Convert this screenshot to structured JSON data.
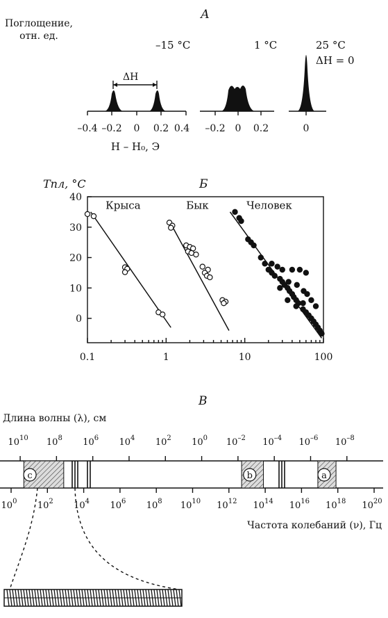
{
  "panel_a": {
    "label": "А",
    "ylabel_line1": "Поглощение,",
    "ylabel_line2": "отн. ед.",
    "spectra": [
      {
        "temp": "–15 °С",
        "ticks": [
          "–0.4",
          "–0.2",
          "0",
          "0.2",
          "0.4"
        ],
        "delta_h": "ΔH"
      },
      {
        "temp": "1 °С",
        "ticks": [
          "–0.2",
          "0",
          "0.2"
        ]
      },
      {
        "temp": "25 °С",
        "note": "ΔH = 0",
        "ticks": [
          "0"
        ]
      }
    ],
    "xlabel": "H – H₀, Э"
  },
  "panel_b": {
    "label": "Б",
    "ylabel": "Tпл, °С",
    "yticks": [
      "0",
      "10",
      "20",
      "30",
      "40"
    ],
    "xticks": [
      "0.1",
      "1",
      "10",
      "100"
    ]
  },
  "chart_data": {
    "type": "scatter",
    "x_scale": "log",
    "xlim": [
      0.1,
      100
    ],
    "ylim": [
      -8,
      40
    ],
    "ylabel": "Tпл, °С",
    "series": [
      {
        "name": "Крыса",
        "marker": "open",
        "fit": [
          [
            0.11,
            35
          ],
          [
            1.15,
            -3
          ]
        ],
        "points": [
          [
            0.1,
            34.3
          ],
          [
            0.12,
            33.6
          ],
          [
            0.3,
            16.8
          ],
          [
            0.32,
            16.3
          ],
          [
            0.3,
            15.2
          ],
          [
            0.8,
            2
          ],
          [
            0.9,
            1.3
          ]
        ]
      },
      {
        "name": "Бык",
        "marker": "open",
        "fit": [
          [
            1.1,
            32
          ],
          [
            6.3,
            -4
          ]
        ],
        "points": [
          [
            1.1,
            31.5
          ],
          [
            1.2,
            30.5
          ],
          [
            1.15,
            29.8
          ],
          [
            1.8,
            24
          ],
          [
            2.0,
            23.5
          ],
          [
            2.2,
            23
          ],
          [
            1.9,
            22
          ],
          [
            2.1,
            21.5
          ],
          [
            2.4,
            21
          ],
          [
            2.9,
            17
          ],
          [
            3.4,
            16
          ],
          [
            3.1,
            15
          ],
          [
            3.3,
            14
          ],
          [
            3.6,
            13.5
          ],
          [
            5.2,
            6
          ],
          [
            5.7,
            5.5
          ],
          [
            5.4,
            5
          ]
        ]
      },
      {
        "name": "Человек",
        "marker": "filled",
        "fit": [
          [
            6.5,
            35
          ],
          [
            95,
            -6.5
          ]
        ],
        "points": [
          [
            7.5,
            35
          ],
          [
            8.5,
            33
          ],
          [
            9,
            32
          ],
          [
            11,
            26
          ],
          [
            12,
            25
          ],
          [
            13,
            24
          ],
          [
            16,
            20
          ],
          [
            18,
            18
          ],
          [
            20,
            16
          ],
          [
            22,
            15
          ],
          [
            24,
            14
          ],
          [
            26,
            17
          ],
          [
            28,
            13
          ],
          [
            30,
            12
          ],
          [
            32,
            11
          ],
          [
            35,
            10
          ],
          [
            37,
            9
          ],
          [
            40,
            8
          ],
          [
            42,
            7
          ],
          [
            45,
            6
          ],
          [
            48,
            5
          ],
          [
            55,
            3
          ],
          [
            60,
            2
          ],
          [
            65,
            1
          ],
          [
            70,
            0
          ],
          [
            75,
            -1
          ],
          [
            80,
            -2
          ],
          [
            85,
            -3
          ],
          [
            90,
            -4
          ],
          [
            95,
            -5
          ],
          [
            22,
            18
          ],
          [
            30,
            16
          ],
          [
            40,
            16
          ],
          [
            50,
            16
          ],
          [
            60,
            15
          ],
          [
            28,
            10
          ],
          [
            36,
            12
          ],
          [
            46,
            11
          ],
          [
            56,
            9
          ],
          [
            62,
            8
          ],
          [
            35,
            6
          ],
          [
            45,
            4
          ],
          [
            55,
            5
          ],
          [
            70,
            6
          ],
          [
            80,
            4
          ]
        ]
      }
    ]
  },
  "panel_c": {
    "label": "В",
    "wavelength_label": "Длина волны (λ), см",
    "wl_exponents": [
      "10",
      "8",
      "6",
      "4",
      "2",
      "0",
      "–2",
      "–4",
      "–6",
      "–8"
    ],
    "freq_exponents": [
      "0",
      "2",
      "4",
      "6",
      "8",
      "10",
      "12",
      "14",
      "16",
      "18",
      "20"
    ],
    "tick_base": "10",
    "frequency_label": "Частота колебаний (ν), Гц",
    "bands": [
      {
        "letter": "c",
        "from": 0.7,
        "to": 2.9
      },
      {
        "letter": "b",
        "from": 12.7,
        "to": 13.9
      },
      {
        "letter": "a",
        "from": 16.9,
        "to": 17.9
      }
    ]
  }
}
